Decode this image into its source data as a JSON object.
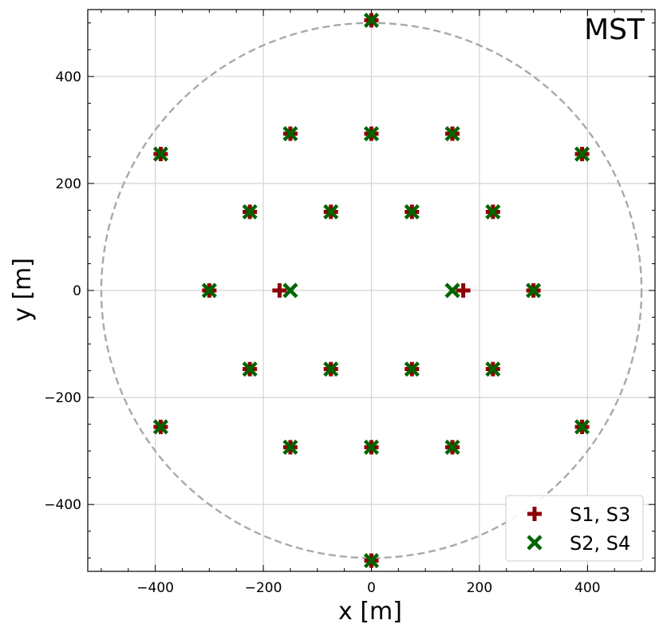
{
  "chart_data": {
    "type": "scatter",
    "title": "MST",
    "xlabel": "x [m]",
    "ylabel": "y [m]",
    "xlim": [
      -525,
      525
    ],
    "ylim": [
      -525,
      525
    ],
    "xticks": [
      -400,
      -200,
      0,
      200,
      400
    ],
    "yticks": [
      -400,
      -200,
      0,
      200,
      400
    ],
    "xtick_labels": [
      "−400",
      "−200",
      "0",
      "200",
      "400"
    ],
    "ytick_labels": [
      "−400",
      "−200",
      "0",
      "200",
      "400"
    ],
    "minor_tick_step": 50,
    "grid": true,
    "legend_position": "bottom-right",
    "boundary_circle": {
      "radius": 500,
      "style": "dashed",
      "color": "#a9a9a9"
    },
    "series": [
      {
        "name": "S1, S3",
        "marker": "plus",
        "color": "#8b0000",
        "x": [
          0,
          -150,
          0,
          150,
          -390,
          390,
          -225,
          -75,
          75,
          225,
          -300,
          -170,
          170,
          300,
          -225,
          -75,
          75,
          225,
          -390,
          390,
          -150,
          0,
          150,
          0
        ],
        "y": [
          505,
          293,
          293,
          293,
          255,
          255,
          147,
          147,
          147,
          147,
          0,
          0,
          0,
          0,
          -147,
          -147,
          -147,
          -147,
          -255,
          -255,
          -293,
          -293,
          -293,
          -505
        ]
      },
      {
        "name": "S2, S4",
        "marker": "x",
        "color": "#006400",
        "x": [
          0,
          -150,
          0,
          150,
          -390,
          390,
          -225,
          -75,
          75,
          225,
          -300,
          -150,
          150,
          300,
          -225,
          -75,
          75,
          225,
          -390,
          390,
          -150,
          0,
          150,
          0
        ],
        "y": [
          505,
          293,
          293,
          293,
          255,
          255,
          147,
          147,
          147,
          147,
          0,
          0,
          0,
          0,
          -147,
          -147,
          -147,
          -147,
          -255,
          -255,
          -293,
          -293,
          -293,
          -505
        ]
      }
    ]
  }
}
